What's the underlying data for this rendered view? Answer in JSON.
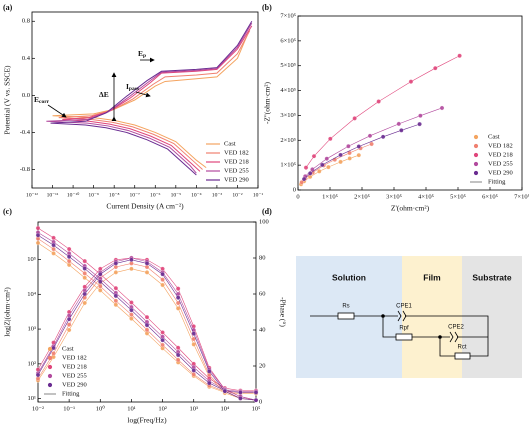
{
  "chart_data": [
    {
      "type": "line",
      "panel_label": "(a)",
      "xlabel": "Current Density (A cm⁻²)",
      "ylabel": "Potential (V vs. SSCE)",
      "xscale": "log",
      "xlim": [
        1e-12,
        0.1
      ],
      "ylim": [
        -1.0,
        0.9
      ],
      "xticks": [
        {
          "value": 1e-12,
          "label": "10⁻¹²"
        },
        {
          "value": 1e-11,
          "label": "10⁻¹¹"
        },
        {
          "value": 1e-10,
          "label": "10⁻¹⁰"
        },
        {
          "value": 1e-09,
          "label": "10⁻⁹"
        },
        {
          "value": 1e-08,
          "label": "10⁻⁸"
        },
        {
          "value": 1e-07,
          "label": "10⁻⁷"
        },
        {
          "value": 1e-06,
          "label": "10⁻⁶"
        },
        {
          "value": 1e-05,
          "label": "10⁻⁵"
        },
        {
          "value": 0.0001,
          "label": "10⁻⁴"
        },
        {
          "value": 0.001,
          "label": "10⁻³"
        },
        {
          "value": 0.01,
          "label": "10⁻²"
        },
        {
          "value": 0.1,
          "label": "10⁻¹"
        }
      ],
      "yticks": [
        -0.8,
        -0.4,
        {
          "value": 0,
          "label": "0.0"
        },
        0.4,
        0.8
      ],
      "legend": "lower right",
      "annotations": [
        {
          "text": "E",
          "sub": "corr"
        },
        {
          "text": "ΔE"
        },
        {
          "text": "I",
          "sub": "pass"
        },
        {
          "text": "E",
          "sub": "p"
        }
      ],
      "series": [
        {
          "name": "Cast",
          "color": "#f4a460",
          "x": [
            0.0003,
            0.0001,
            1e-05,
            1e-06,
            1e-07,
            1e-08,
            1e-09,
            1e-11,
            1e-09,
            1e-08,
            1e-07,
            1e-06,
            3e-06,
            0.0001,
            0.001,
            0.01,
            0.03
          ],
          "values": [
            -0.78,
            -0.7,
            -0.5,
            -0.4,
            -0.32,
            -0.27,
            -0.24,
            -0.22,
            -0.2,
            -0.15,
            -0.05,
            0.1,
            0.15,
            0.18,
            0.2,
            0.4,
            0.65
          ]
        },
        {
          "name": "VED 182",
          "color": "#f08070",
          "x": [
            0.0002,
            8e-05,
            8e-06,
            8e-07,
            8e-08,
            8e-09,
            8e-10,
            2e-11,
            8e-10,
            8e-09,
            8e-08,
            8e-07,
            3e-06,
            0.0001,
            0.001,
            0.01,
            0.04
          ],
          "values": [
            -0.8,
            -0.72,
            -0.52,
            -0.42,
            -0.34,
            -0.29,
            -0.26,
            -0.24,
            -0.22,
            -0.16,
            -0.04,
            0.12,
            0.2,
            0.22,
            0.24,
            0.45,
            0.7
          ]
        },
        {
          "name": "VED 218",
          "color": "#e0457b",
          "x": [
            0.00015,
            6e-05,
            6e-06,
            6e-07,
            6e-08,
            6e-09,
            6e-10,
            3e-11,
            6e-10,
            6e-09,
            6e-08,
            6e-07,
            2e-06,
            0.0001,
            0.001,
            0.01,
            0.05
          ],
          "values": [
            -0.82,
            -0.74,
            -0.54,
            -0.44,
            -0.36,
            -0.31,
            -0.28,
            -0.26,
            -0.24,
            -0.17,
            -0.03,
            0.14,
            0.24,
            0.26,
            0.28,
            0.5,
            0.75
          ]
        },
        {
          "name": "VED 255",
          "color": "#b24a9e",
          "x": [
            0.0001,
            5e-05,
            5e-06,
            5e-07,
            5e-08,
            5e-09,
            5e-10,
            5e-12,
            5e-10,
            5e-09,
            5e-08,
            5e-07,
            2e-06,
            0.0001,
            0.001,
            0.01,
            0.05
          ],
          "values": [
            -0.84,
            -0.76,
            -0.56,
            -0.46,
            -0.38,
            -0.33,
            -0.3,
            -0.28,
            -0.26,
            -0.18,
            -0.02,
            0.15,
            0.25,
            0.27,
            0.29,
            0.52,
            0.78
          ]
        },
        {
          "name": "VED 290",
          "color": "#6a2c91",
          "x": [
            0.0001,
            4e-05,
            4e-06,
            4e-07,
            4e-08,
            4e-09,
            4e-10,
            8e-12,
            4e-10,
            4e-09,
            4e-08,
            4e-07,
            2e-06,
            0.0001,
            0.001,
            0.01,
            0.05
          ],
          "values": [
            -0.86,
            -0.78,
            -0.58,
            -0.48,
            -0.4,
            -0.35,
            -0.32,
            -0.3,
            -0.28,
            -0.19,
            -0.01,
            0.16,
            0.26,
            0.28,
            0.3,
            0.54,
            0.8
          ]
        }
      ]
    },
    {
      "type": "scatter",
      "panel_label": "(b)",
      "xlabel": "Z'(ohm·cm²)",
      "ylabel": "-Z''(ohm·cm²)",
      "xlim": [
        0,
        700000
      ],
      "ylim": [
        0,
        700000
      ],
      "xticks": [
        0,
        {
          "value": 100000,
          "label": "1×10⁵"
        },
        {
          "value": 200000,
          "label": "2×10⁵"
        },
        {
          "value": 300000,
          "label": "3×10⁵"
        },
        {
          "value": 400000,
          "label": "4×10⁵"
        },
        {
          "value": 500000,
          "label": "5×10⁵"
        },
        {
          "value": 600000,
          "label": "6×10⁵"
        },
        {
          "value": 700000,
          "label": "7×10⁵"
        }
      ],
      "yticks": [
        0,
        {
          "value": 100000,
          "label": "1×10⁵"
        },
        {
          "value": 200000,
          "label": "2×10⁵"
        },
        {
          "value": 300000,
          "label": "3×10⁵"
        },
        {
          "value": 400000,
          "label": "4×10⁵"
        },
        {
          "value": 500000,
          "label": "5×10⁵"
        },
        {
          "value": 600000,
          "label": "6×10⁵"
        },
        {
          "value": 700000,
          "label": "7×10⁵"
        }
      ],
      "legend": "lower right",
      "fit_label": "Fitting",
      "series": [
        {
          "name": "Cast",
          "color": "#f4a460",
          "x": [
            9500,
            19000,
            38000,
            66500,
            95000,
            133000,
            161500,
            190000
          ],
          "values": [
            23000,
            35000,
            53000,
            75000,
            92000,
            113000,
            127000,
            140000
          ]
        },
        {
          "name": "VED 182",
          "color": "#f08070",
          "x": [
            11500,
            23000,
            46000,
            80500,
            115000,
            161000,
            195500,
            230000
          ],
          "values": [
            31000,
            46000,
            70000,
            99000,
            122000,
            149000,
            168000,
            185000
          ]
        },
        {
          "name": "VED 218",
          "color": "#e0457b",
          "x": [
            25000,
            50000,
            101000,
            177000,
            252000,
            353000,
            429000,
            505000
          ],
          "values": [
            90000,
            136000,
            206000,
            288000,
            356000,
            436000,
            490000,
            540000
          ]
        },
        {
          "name": "VED 255",
          "color": "#b24a9e",
          "x": [
            22500,
            45000,
            90000,
            157500,
            225000,
            315000,
            382500,
            450000
          ],
          "values": [
            55000,
            83000,
            126000,
            176000,
            218000,
            266000,
            299000,
            330000
          ]
        },
        {
          "name": "VED 290",
          "color": "#6a2c91",
          "x": [
            19000,
            38000,
            76000,
            133000,
            190000,
            266000,
            323000,
            380000
          ],
          "values": [
            44000,
            67000,
            101000,
            141000,
            175000,
            214000,
            240000,
            265000
          ]
        }
      ]
    },
    {
      "type": "line",
      "panel_label": "(c)",
      "xlabel": "log(Freq/Hz)",
      "ylabel": "log|Z|(ohm·cm²)",
      "y2label": "-Phase (°)",
      "markers": true,
      "xscale": "log",
      "yscale": "log",
      "xlim": [
        0.01,
        100000
      ],
      "ylim": [
        8,
        1200000
      ],
      "y2lim": [
        0,
        100
      ],
      "xticks": [
        {
          "value": 0.01,
          "label": "10⁻²"
        },
        {
          "value": 0.1,
          "label": "10⁻¹"
        },
        {
          "value": 1,
          "label": "10⁰"
        },
        {
          "value": 10,
          "label": "10¹"
        },
        {
          "value": 100,
          "label": "10²"
        },
        {
          "value": 1000,
          "label": "10³"
        },
        {
          "value": 10000,
          "label": "10⁴"
        },
        {
          "value": 100000,
          "label": "10⁵"
        }
      ],
      "yticks": [
        {
          "value": 10,
          "label": "10¹"
        },
        {
          "value": 100,
          "label": "10²"
        },
        {
          "value": 1000,
          "label": "10³"
        },
        {
          "value": 10000,
          "label": "10⁴"
        },
        {
          "value": 100000,
          "label": "10⁵"
        }
      ],
      "y2ticks": [
        0,
        20,
        40,
        60,
        80,
        100
      ],
      "legend": "lower left",
      "fit_label": "Fitting",
      "x": [
        0.01,
        0.0316,
        0.1,
        0.316,
        1,
        3.16,
        10,
        31.6,
        100,
        316,
        1000,
        3162,
        10000,
        31623,
        100000
      ],
      "series": [
        {
          "name": "Cast",
          "color": "#f4a460",
          "values": [
            300000,
            150000,
            70000,
            30000,
            13000,
            5000,
            2000,
            750,
            280,
            110,
            45,
            22,
            15,
            14,
            14
          ],
          "phase": [
            12,
            25,
            40,
            55,
            66,
            72,
            74,
            72,
            65,
            52,
            32,
            14,
            5,
            2,
            1
          ]
        },
        {
          "name": "VED 182",
          "color": "#f08070",
          "values": [
            400000,
            200000,
            90000,
            40000,
            17000,
            6500,
            2600,
            950,
            350,
            130,
            50,
            24,
            16,
            15,
            15
          ],
          "phase": [
            13,
            27,
            43,
            58,
            69,
            75,
            77,
            75,
            68,
            55,
            35,
            15,
            6,
            2,
            1
          ]
        },
        {
          "name": "VED 218",
          "color": "#e0457b",
          "values": [
            800000,
            420000,
            200000,
            90000,
            38000,
            15000,
            5800,
            2200,
            800,
            290,
            100,
            38,
            20,
            17,
            17
          ],
          "phase": [
            18,
            33,
            50,
            64,
            74,
            79,
            80,
            79,
            74,
            63,
            42,
            19,
            7,
            3,
            1
          ]
        },
        {
          "name": "VED 255",
          "color": "#b24a9e",
          "values": [
            600000,
            320000,
            150000,
            65000,
            28000,
            11000,
            4300,
            1600,
            600,
            220,
            80,
            32,
            18,
            16,
            16
          ],
          "phase": [
            16,
            31,
            48,
            62,
            72,
            78,
            80,
            78,
            72,
            60,
            40,
            18,
            7,
            3,
            1
          ]
        },
        {
          "name": "VED 290",
          "color": "#6a2c91",
          "values": [
            500000,
            260000,
            120000,
            55000,
            23000,
            9000,
            3500,
            1300,
            480,
            180,
            65,
            28,
            17,
            15,
            15
          ],
          "phase": [
            15,
            30,
            46,
            60,
            71,
            77,
            79,
            77,
            71,
            58,
            38,
            17,
            6,
            2,
            1
          ]
        }
      ]
    }
  ],
  "diagram": {
    "panel_label": "(d)",
    "regions": [
      "Solution",
      "Film",
      "Substrate"
    ],
    "components": [
      "Rs",
      "CPE1",
      "Rpf",
      "CPE2",
      "Rct"
    ]
  }
}
